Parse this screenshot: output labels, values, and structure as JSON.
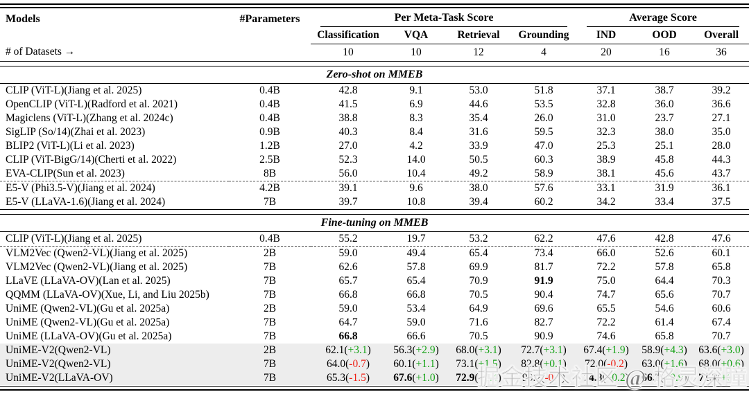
{
  "colors": {
    "positive": "#18a318",
    "negative": "#ee1f14",
    "highlight": "#ededed"
  },
  "header": {
    "models": "Models",
    "parameters": "#Parameters",
    "group_meta": "Per Meta-Task Score",
    "group_avg": "Average Score",
    "subheaders": [
      "Classification",
      "VQA",
      "Retrieval",
      "Grounding",
      "IND",
      "OOD",
      "Overall"
    ]
  },
  "datasets": {
    "label": "# of Datasets →",
    "counts": [
      "10",
      "10",
      "12",
      "4",
      "20",
      "16",
      "36"
    ]
  },
  "sections": [
    {
      "title": "Zero-shot on MMEB",
      "rows": [
        {
          "model": "CLIP (ViT-L)(Jiang et al. 2025)",
          "params": "0.4B",
          "cells": [
            "42.8",
            "9.1",
            "53.0",
            "51.8",
            "37.1",
            "38.7",
            "39.2"
          ]
        },
        {
          "model": "OpenCLIP (ViT-L)(Radford et al. 2021)",
          "params": "0.4B",
          "cells": [
            "41.5",
            "6.9",
            "44.6",
            "53.5",
            "32.8",
            "36.0",
            "36.6"
          ]
        },
        {
          "model": "Magiclens (ViT-L)(Zhang et al. 2024c)",
          "params": "0.4B",
          "cells": [
            "38.8",
            "8.3",
            "35.4",
            "26.0",
            "31.0",
            "23.7",
            "27.1"
          ]
        },
        {
          "model": "SigLIP (So/14)(Zhai et al. 2023)",
          "params": "0.9B",
          "cells": [
            "40.3",
            "8.4",
            "31.6",
            "59.5",
            "32.3",
            "38.0",
            "35.0"
          ]
        },
        {
          "model": "BLIP2 (ViT-L)(Li et al. 2023)",
          "params": "1.2B",
          "cells": [
            "27.0",
            "4.2",
            "33.9",
            "47.0",
            "25.3",
            "25.1",
            "28.0"
          ]
        },
        {
          "model": "CLIP (ViT-BigG/14)(Cherti et al. 2022)",
          "params": "2.5B",
          "cells": [
            "52.3",
            "14.0",
            "50.5",
            "60.3",
            "38.9",
            "45.8",
            "44.3"
          ]
        },
        {
          "model": "EVA-CLIP(Sun et al. 2023)",
          "params": "8B",
          "cells": [
            "56.0",
            "10.4",
            "49.2",
            "58.9",
            "38.1",
            "45.6",
            "43.7"
          ],
          "dashed": true
        },
        {
          "model": "E5-V (Phi3.5-V)(Jiang et al. 2024)",
          "params": "4.2B",
          "cells": [
            "39.1",
            "9.6",
            "38.0",
            "57.6",
            "33.1",
            "31.9",
            "36.1"
          ]
        },
        {
          "model": "E5-V (LLaVA-1.6)(Jiang et al. 2024)",
          "params": "7B",
          "cells": [
            "39.7",
            "10.8",
            "39.4",
            "60.2",
            "34.2",
            "33.4",
            "37.5"
          ]
        }
      ]
    },
    {
      "title": "Fine-tuning on MMEB",
      "rows": [
        {
          "model": "CLIP (ViT-L)(Jiang et al. 2025)",
          "params": "0.4B",
          "cells": [
            "55.2",
            "19.7",
            "53.2",
            "62.2",
            "47.6",
            "42.8",
            "47.6"
          ],
          "dashed": true
        },
        {
          "model": "VLM2Vec (Qwen2-VL)(Jiang et al. 2025)",
          "params": "2B",
          "cells": [
            "59.0",
            "49.4",
            "65.4",
            "73.4",
            "66.0",
            "52.6",
            "60.1"
          ]
        },
        {
          "model": "VLM2Vec (Qwen2-VL)(Jiang et al. 2025)",
          "params": "7B",
          "cells": [
            "62.6",
            "57.8",
            "69.9",
            "81.7",
            "72.2",
            "57.8",
            "65.8"
          ]
        },
        {
          "model": "LLaVE (LLaVA-OV)(Lan et al. 2025)",
          "params": "7B",
          "cells": [
            "65.7",
            "65.4",
            "70.9",
            {
              "v": "91.9",
              "b": true
            },
            "75.0",
            "64.4",
            "70.3"
          ]
        },
        {
          "model": "QQMM (LLaVA-OV)(Xue, Li, and Liu 2025b)",
          "params": "7B",
          "cells": [
            "66.8",
            "66.8",
            "70.5",
            "90.4",
            "74.7",
            "65.6",
            "70.7"
          ]
        },
        {
          "model": "UniME (Qwen2-VL)(Gu et al. 2025a)",
          "params": "2B",
          "cells": [
            "59.0",
            "53.4",
            "64.9",
            "69.6",
            "65.5",
            "54.6",
            "60.6"
          ]
        },
        {
          "model": "UniME (Qwen2-VL)(Gu et al. 2025a)",
          "params": "7B",
          "cells": [
            "64.7",
            "59.0",
            "71.6",
            "82.7",
            "72.2",
            "61.4",
            "67.4"
          ]
        },
        {
          "model": "UniME (LLaVA-OV)(Gu et al. 2025a)",
          "params": "7B",
          "cells": [
            {
              "v": "66.8",
              "b": true
            },
            "66.6",
            "70.5",
            "90.9",
            "74.6",
            "65.8",
            "70.7"
          ]
        },
        {
          "model": "UniME-V2(Qwen2-VL)",
          "params": "2B",
          "hl": true,
          "cells": [
            {
              "v": "62.1",
              "d": "+3.1"
            },
            {
              "v": "56.3",
              "d": "+2.9"
            },
            {
              "v": "68.0",
              "d": "+3.1"
            },
            {
              "v": "72.7",
              "d": "+3.1"
            },
            {
              "v": "67.4",
              "d": "+1.9"
            },
            {
              "v": "58.9",
              "d": "+4.3"
            },
            {
              "v": "63.6",
              "d": "+3.0"
            }
          ]
        },
        {
          "model": "UniME-V2(Qwen2-VL)",
          "params": "7B",
          "hl": true,
          "cells": [
            {
              "v": "64.0",
              "d": "-0.7"
            },
            {
              "v": "60.1",
              "d": "+1.1"
            },
            {
              "v": "73.1",
              "d": "+1.5"
            },
            {
              "v": "82.8",
              "d": "+0.1"
            },
            {
              "v": "72.0",
              "d": "-0.2"
            },
            {
              "v": "63.0",
              "d": "+1.6"
            },
            {
              "v": "68.0",
              "d": "+0.6"
            }
          ]
        },
        {
          "model": "UniME-V2(LLaVA-OV)",
          "params": "7B",
          "hl": true,
          "cells": [
            {
              "v": "65.3",
              "d": "-1.5"
            },
            {
              "v": "67.6",
              "b": true,
              "d": "+1.0"
            },
            {
              "v": "72.9",
              "b": true,
              "d": "+2.4"
            },
            {
              "v": "90.2",
              "d": "-0.7"
            },
            {
              "v": "74.8",
              "b": true,
              "d": "+0.2"
            },
            {
              "v": "66.7",
              "b": true,
              "d": "+0.9"
            },
            {
              "v": "71.2",
              "b": true,
              "d": "+0.5"
            }
          ]
        }
      ]
    }
  ],
  "watermark": "掘金技术社区 @ 格灵深瞳"
}
